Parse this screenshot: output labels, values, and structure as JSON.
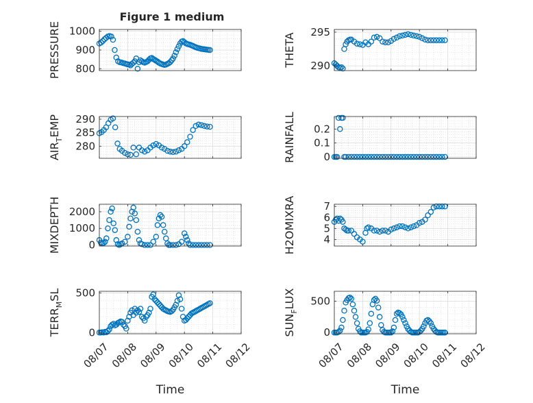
{
  "title": "Figure 1 medium",
  "chart_data": {
    "type": "scatter",
    "x_axis": {
      "label": "Time",
      "tick_labels": [
        "08/07",
        "08/08",
        "08/09",
        "08/10",
        "08/11",
        "08/12"
      ],
      "range": [
        "08/07",
        "08/12"
      ]
    },
    "marker": {
      "shape": "circle",
      "filled": false,
      "color": "#0072bd"
    },
    "grid": true,
    "panels": [
      {
        "name": "pressure",
        "ylabel": "PRESSURE",
        "ylim": [
          790,
          1010
        ],
        "yticks": [
          "800",
          "900",
          "1000"
        ],
        "ytick_values": [
          800,
          900,
          1000
        ],
        "t": [
          0,
          0.06,
          0.12,
          0.18,
          0.24,
          0.3,
          0.36,
          0.42,
          0.48,
          0.54,
          0.6,
          0.66,
          0.72,
          0.78,
          0.84,
          0.9,
          0.96,
          1.0,
          1.05,
          1.1,
          1.15,
          1.2,
          1.25,
          1.3,
          1.35,
          1.4,
          1.45,
          1.5,
          1.55,
          1.6,
          1.65,
          1.7,
          1.75,
          1.8,
          1.85,
          1.9,
          1.95,
          2.0,
          2.05,
          2.1,
          2.15,
          2.2,
          2.25,
          2.3,
          2.35,
          2.4,
          2.45,
          2.5,
          2.55,
          2.6,
          2.65,
          2.7,
          2.75,
          2.8,
          2.85,
          2.9,
          2.95,
          3.0,
          3.05,
          3.1,
          3.15,
          3.2,
          3.25,
          3.3,
          3.35,
          3.4,
          3.45,
          3.5,
          3.55,
          3.6,
          3.65,
          3.7,
          3.75,
          3.8,
          3.85,
          3.9
        ],
        "y": [
          935,
          940,
          948,
          958,
          965,
          972,
          975,
          972,
          955,
          900,
          860,
          840,
          835,
          833,
          830,
          828,
          825,
          823,
          822,
          818,
          826,
          832,
          840,
          855,
          800,
          835,
          845,
          840,
          835,
          832,
          836,
          840,
          848,
          855,
          858,
          852,
          848,
          842,
          838,
          832,
          828,
          825,
          822,
          820,
          822,
          826,
          830,
          836,
          845,
          855,
          870,
          888,
          905,
          920,
          935,
          945,
          948,
          942,
          936,
          932,
          930,
          928,
          925,
          922,
          918,
          915,
          912,
          910,
          908,
          906,
          905,
          904,
          903,
          902,
          901,
          900
        ]
      },
      {
        "name": "theta",
        "ylabel": "THETA",
        "ylim": [
          289.3,
          295.4
        ],
        "yticks": [
          "290",
          "295"
        ],
        "ytick_values": [
          290,
          295
        ],
        "t": [
          0,
          0.05,
          0.1,
          0.15,
          0.2,
          0.25,
          0.3,
          0.35,
          0.4,
          0.45,
          0.5,
          0.55,
          0.6,
          0.7,
          0.8,
          0.9,
          1.0,
          1.1,
          1.2,
          1.3,
          1.4,
          1.5,
          1.6,
          1.7,
          1.8,
          1.9,
          2.0,
          2.1,
          2.2,
          2.3,
          2.4,
          2.5,
          2.6,
          2.7,
          2.8,
          2.9,
          3.0,
          3.1,
          3.2,
          3.3,
          3.4,
          3.5,
          3.6,
          3.7,
          3.8,
          3.9
        ],
        "y": [
          290.4,
          290.2,
          290.0,
          289.8,
          289.7,
          289.8,
          289.6,
          292.5,
          293.2,
          293.6,
          293.8,
          293.9,
          293.9,
          293.6,
          293.3,
          293.2,
          293.1,
          293.5,
          293.2,
          293.6,
          294.2,
          294.3,
          294.1,
          293.6,
          293.5,
          293.5,
          293.7,
          294.0,
          294.2,
          294.4,
          294.5,
          294.6,
          294.7,
          294.6,
          294.5,
          294.4,
          294.3,
          294.1,
          293.9,
          293.8,
          293.8,
          293.8,
          293.8,
          293.8,
          293.8,
          293.8
        ]
      },
      {
        "name": "air_temp",
        "ylabel": "AIR",
        "ylabel_sub": "T",
        "ylabel_suffix": "EMP",
        "ylim": [
          275.5,
          291
        ],
        "yticks": [
          "280",
          "285",
          "290"
        ],
        "ytick_values": [
          280,
          285,
          290
        ],
        "t": [
          0,
          0.08,
          0.16,
          0.24,
          0.32,
          0.4,
          0.48,
          0.56,
          0.64,
          0.72,
          0.8,
          0.9,
          1.0,
          1.1,
          1.2,
          1.3,
          1.4,
          1.5,
          1.6,
          1.7,
          1.8,
          1.9,
          2.0,
          2.1,
          2.2,
          2.3,
          2.4,
          2.5,
          2.6,
          2.7,
          2.8,
          2.9,
          3.0,
          3.1,
          3.2,
          3.3,
          3.4,
          3.5,
          3.6,
          3.7,
          3.8,
          3.9
        ],
        "y": [
          284.8,
          285.2,
          286.0,
          287.0,
          288.5,
          289.8,
          290.3,
          287.0,
          281.0,
          279.0,
          278.3,
          277.5,
          277.0,
          276.8,
          279.5,
          277.0,
          279.5,
          278.5,
          278.0,
          278.5,
          279.5,
          280.3,
          280.8,
          280.3,
          279.5,
          279.0,
          278.3,
          278.0,
          277.8,
          278.0,
          278.5,
          279.0,
          280.0,
          281.5,
          283.5,
          286.0,
          287.5,
          288.0,
          287.8,
          287.5,
          287.3,
          287.2
        ]
      },
      {
        "name": "rainfall",
        "ylabel": "RAINFALL",
        "ylim": [
          -0.01,
          0.29
        ],
        "yticks": [
          "0",
          "0.1",
          "0.2"
        ],
        "ytick_values": [
          0,
          0.1,
          0.2
        ],
        "t": [
          0,
          0.05,
          0.1,
          0.15,
          0.2,
          0.25,
          0.3,
          0.35,
          0.4,
          0.5,
          0.6,
          0.7,
          0.8,
          0.9,
          1.0,
          1.1,
          1.2,
          1.3,
          1.4,
          1.5,
          1.6,
          1.7,
          1.8,
          1.9,
          2.0,
          2.1,
          2.2,
          2.3,
          2.4,
          2.5,
          2.6,
          2.7,
          2.8,
          2.9,
          3.0,
          3.1,
          3.2,
          3.3,
          3.4,
          3.5,
          3.6,
          3.7,
          3.8,
          3.9
        ],
        "y": [
          0,
          0,
          0,
          0.28,
          0.2,
          0.28,
          0.28,
          0,
          0,
          0,
          0,
          0,
          0,
          0,
          0,
          0,
          0,
          0,
          0,
          0,
          0,
          0,
          0,
          0,
          0,
          0,
          0,
          0,
          0,
          0,
          0,
          0,
          0,
          0,
          0,
          0,
          0,
          0,
          0,
          0,
          0,
          0,
          0,
          0
        ]
      },
      {
        "name": "mixdepth",
        "ylabel": "MIXDEPTH",
        "ylim": [
          -60,
          2450
        ],
        "yticks": [
          "0",
          "1000",
          "2000"
        ],
        "ytick_values": [
          0,
          1000,
          2000
        ],
        "t": [
          0,
          0.05,
          0.1,
          0.15,
          0.2,
          0.25,
          0.3,
          0.35,
          0.4,
          0.45,
          0.5,
          0.55,
          0.6,
          0.65,
          0.7,
          0.75,
          0.8,
          0.9,
          1.0,
          1.05,
          1.1,
          1.15,
          1.2,
          1.25,
          1.3,
          1.35,
          1.4,
          1.45,
          1.5,
          1.6,
          1.7,
          1.8,
          1.9,
          2.0,
          2.05,
          2.1,
          2.15,
          2.2,
          2.25,
          2.3,
          2.35,
          2.4,
          2.45,
          2.5,
          2.6,
          2.7,
          2.8,
          2.9,
          3.0,
          3.05,
          3.1,
          3.15,
          3.2,
          3.3,
          3.4,
          3.5,
          3.6,
          3.7,
          3.8,
          3.9
        ],
        "y": [
          300,
          150,
          100,
          120,
          200,
          400,
          1000,
          1500,
          2000,
          2200,
          1300,
          900,
          300,
          50,
          0,
          50,
          100,
          200,
          500,
          1100,
          1600,
          2000,
          2250,
          1900,
          1500,
          800,
          300,
          100,
          50,
          0,
          0,
          0,
          200,
          500,
          1200,
          1600,
          1800,
          1700,
          1200,
          800,
          400,
          100,
          0,
          0,
          0,
          0,
          50,
          200,
          700,
          500,
          300,
          100,
          0,
          0,
          0,
          0,
          0,
          0,
          0,
          0
        ]
      },
      {
        "name": "h2omixra",
        "ylabel": "H2OMIXRA",
        "ylim": [
          3.4,
          7.2
        ],
        "yticks": [
          "4",
          "5",
          "6",
          "7"
        ],
        "ytick_values": [
          4,
          5,
          6,
          7
        ],
        "t": [
          0,
          0.05,
          0.1,
          0.15,
          0.2,
          0.25,
          0.3,
          0.35,
          0.4,
          0.45,
          0.5,
          0.6,
          0.7,
          0.8,
          0.9,
          1.0,
          1.1,
          1.15,
          1.2,
          1.3,
          1.4,
          1.5,
          1.6,
          1.7,
          1.8,
          1.9,
          2.0,
          2.1,
          2.2,
          2.3,
          2.4,
          2.5,
          2.6,
          2.7,
          2.8,
          2.9,
          3.0,
          3.1,
          3.2,
          3.3,
          3.4,
          3.5,
          3.6,
          3.7,
          3.8,
          3.9
        ],
        "y": [
          5.6,
          5.8,
          5.9,
          5.7,
          5.9,
          5.8,
          5.6,
          5.0,
          4.9,
          4.8,
          4.8,
          4.8,
          4.5,
          4.2,
          4.0,
          3.8,
          4.6,
          5.0,
          5.1,
          5.0,
          4.8,
          4.8,
          4.7,
          4.8,
          4.8,
          4.7,
          4.9,
          5.0,
          5.1,
          5.2,
          5.2,
          5.1,
          5.0,
          5.1,
          5.2,
          5.3,
          5.5,
          5.6,
          5.8,
          6.2,
          6.5,
          6.9,
          7.0,
          7.0,
          7.0,
          7.0
        ]
      },
      {
        "name": "terr_msl",
        "ylabel": "TERR",
        "ylabel_sub": "M",
        "ylabel_suffix": "SL",
        "ylim": [
          -15,
          520
        ],
        "yticks": [
          "0",
          "500"
        ],
        "ytick_values": [
          0,
          500
        ],
        "t": [
          0,
          0.05,
          0.1,
          0.15,
          0.2,
          0.25,
          0.3,
          0.35,
          0.4,
          0.45,
          0.5,
          0.55,
          0.6,
          0.65,
          0.7,
          0.75,
          0.8,
          0.85,
          0.9,
          0.95,
          1.0,
          1.05,
          1.1,
          1.15,
          1.2,
          1.25,
          1.3,
          1.35,
          1.4,
          1.45,
          1.5,
          1.55,
          1.6,
          1.65,
          1.7,
          1.75,
          1.8,
          1.85,
          1.9,
          1.95,
          2.0,
          2.05,
          2.1,
          2.15,
          2.2,
          2.25,
          2.3,
          2.35,
          2.4,
          2.45,
          2.5,
          2.55,
          2.6,
          2.65,
          2.7,
          2.75,
          2.8,
          2.85,
          2.9,
          2.95,
          3.0,
          3.05,
          3.1,
          3.15,
          3.2,
          3.25,
          3.3,
          3.35,
          3.4,
          3.45,
          3.5,
          3.55,
          3.6,
          3.65,
          3.7,
          3.75,
          3.8,
          3.85,
          3.9
        ],
        "y": [
          0,
          0,
          5,
          0,
          10,
          5,
          20,
          40,
          80,
          100,
          110,
          90,
          100,
          120,
          130,
          140,
          135,
          100,
          80,
          50,
          150,
          200,
          250,
          280,
          220,
          300,
          250,
          280,
          260,
          300,
          200,
          180,
          150,
          200,
          220,
          250,
          300,
          450,
          480,
          420,
          400,
          380,
          360,
          340,
          320,
          300,
          290,
          280,
          270,
          265,
          260,
          270,
          290,
          320,
          350,
          400,
          470,
          420,
          300,
          200,
          150,
          160,
          180,
          200,
          220,
          240,
          250,
          260,
          270,
          280,
          290,
          300,
          310,
          320,
          330,
          340,
          350,
          360,
          370
        ]
      },
      {
        "name": "sun_flux",
        "ylabel": "SUN",
        "ylabel_sub": "F",
        "ylabel_suffix": "LUX",
        "ylim": [
          -20,
          660
        ],
        "yticks": [
          "0",
          "500"
        ],
        "ytick_values": [
          0,
          500
        ],
        "t": [
          0,
          0.05,
          0.1,
          0.15,
          0.2,
          0.25,
          0.3,
          0.35,
          0.4,
          0.45,
          0.5,
          0.55,
          0.6,
          0.65,
          0.7,
          0.75,
          0.8,
          0.85,
          0.9,
          0.95,
          1.0,
          1.05,
          1.1,
          1.15,
          1.2,
          1.25,
          1.3,
          1.35,
          1.4,
          1.45,
          1.5,
          1.55,
          1.6,
          1.65,
          1.7,
          1.75,
          1.8,
          1.85,
          1.9,
          1.95,
          2.0,
          2.05,
          2.1,
          2.15,
          2.2,
          2.25,
          2.3,
          2.35,
          2.4,
          2.45,
          2.5,
          2.55,
          2.6,
          2.65,
          2.7,
          2.75,
          2.8,
          2.85,
          2.9,
          2.95,
          3.0,
          3.05,
          3.1,
          3.15,
          3.2,
          3.25,
          3.3,
          3.35,
          3.4,
          3.45,
          3.5,
          3.55,
          3.6,
          3.65,
          3.7,
          3.75,
          3.8,
          3.85,
          3.9
        ],
        "y": [
          0,
          0,
          0,
          10,
          30,
          80,
          200,
          350,
          480,
          520,
          550,
          560,
          540,
          450,
          350,
          250,
          150,
          60,
          20,
          0,
          0,
          0,
          0,
          10,
          50,
          150,
          300,
          450,
          520,
          540,
          510,
          400,
          250,
          120,
          40,
          10,
          0,
          0,
          0,
          0,
          0,
          20,
          80,
          200,
          300,
          320,
          310,
          290,
          250,
          200,
          150,
          100,
          60,
          30,
          10,
          0,
          0,
          0,
          0,
          0,
          10,
          30,
          60,
          100,
          150,
          190,
          200,
          180,
          150,
          100,
          60,
          30,
          10,
          0,
          0,
          0,
          0,
          0,
          0
        ]
      }
    ]
  }
}
